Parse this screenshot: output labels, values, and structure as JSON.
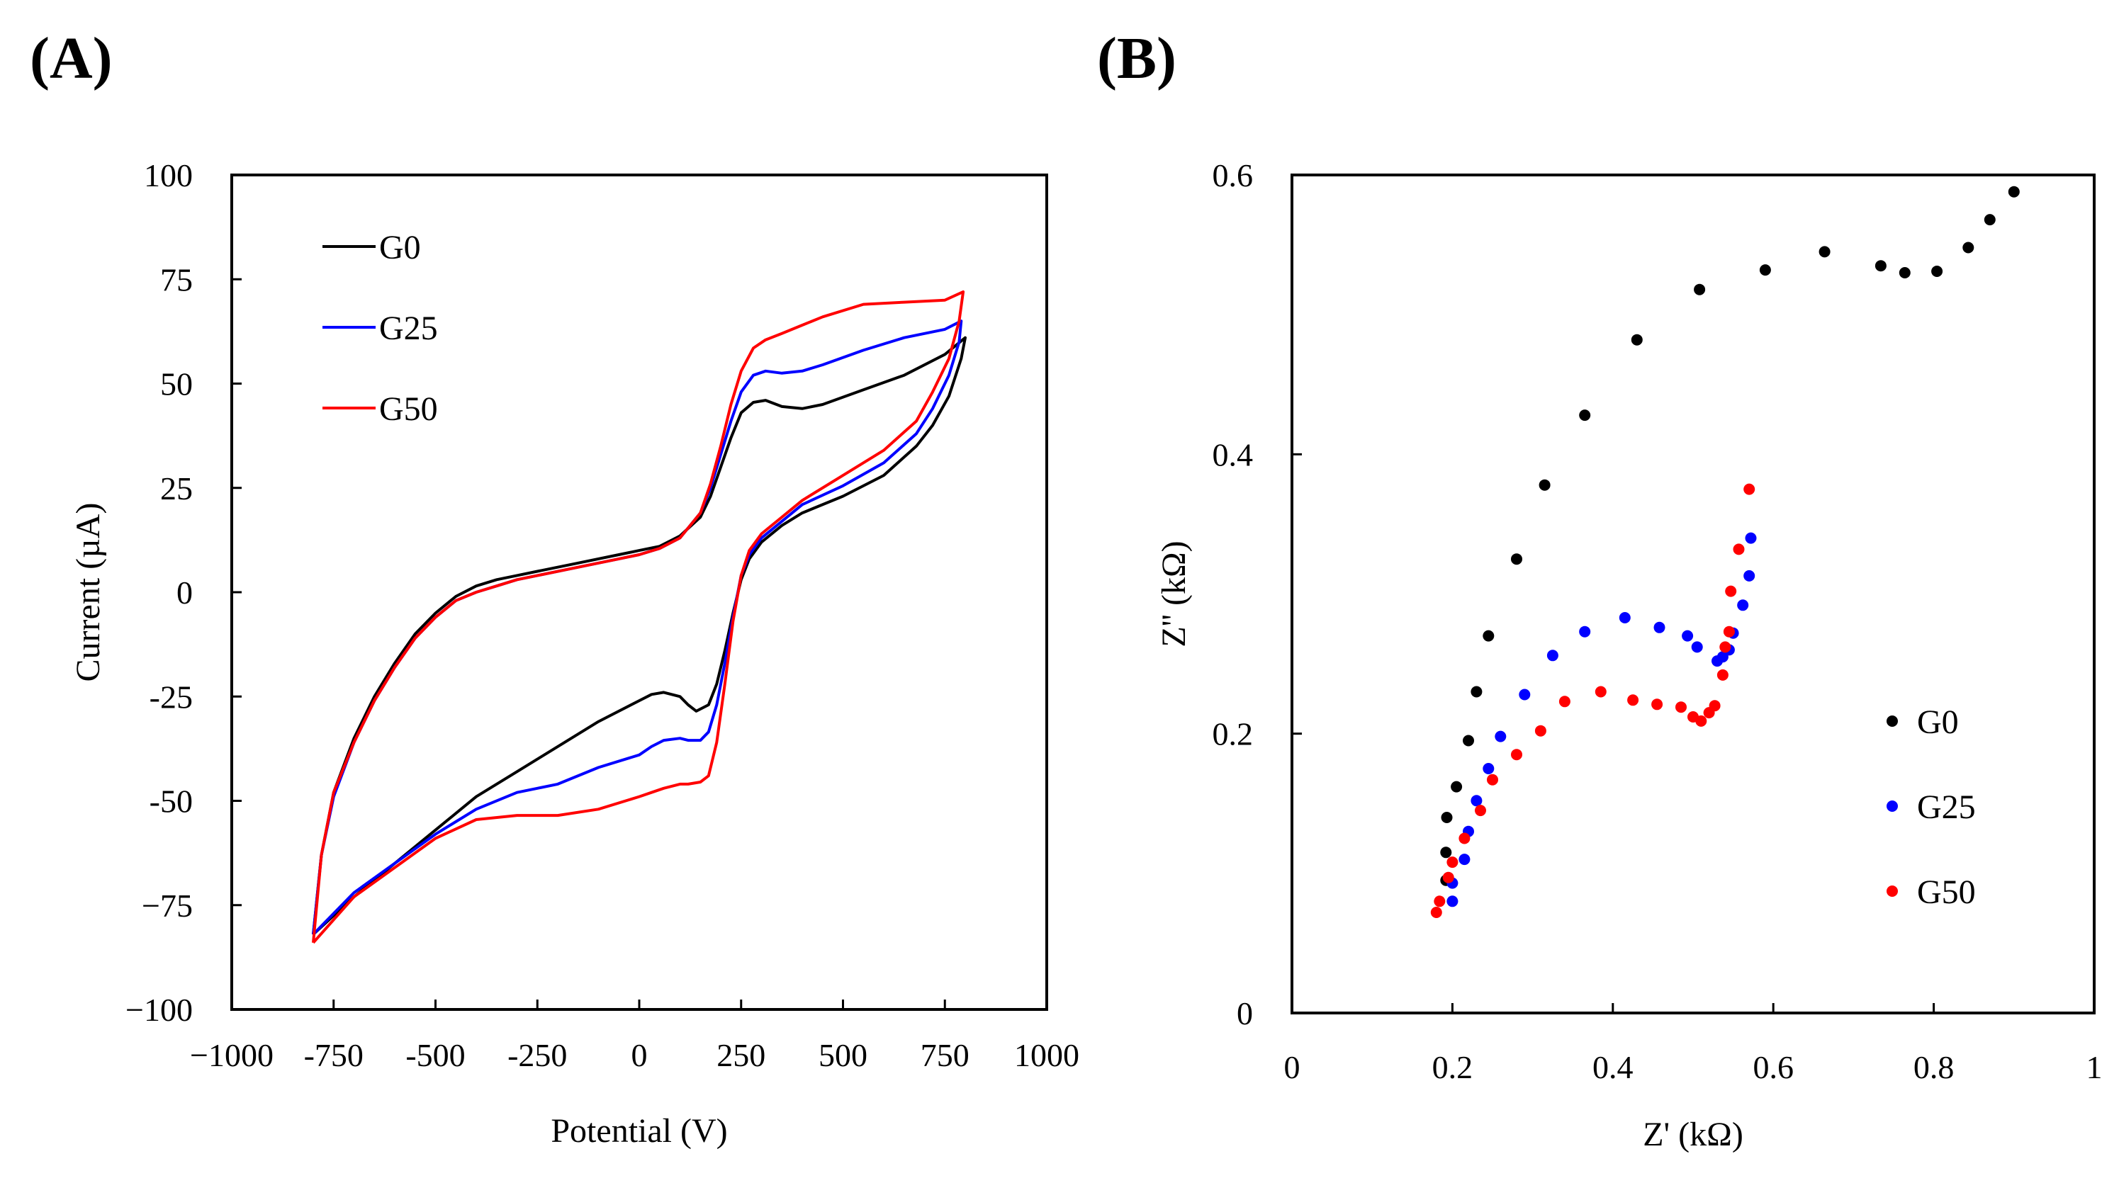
{
  "figure": {
    "panel_a_label": "(A)",
    "panel_b_label": "(B)"
  },
  "chart_data": [
    {
      "type": "line",
      "panel": "(A)",
      "title": "",
      "xlabel": "Potential (V)",
      "ylabel": "Current (µA)",
      "xlim": [
        -1000,
        1000
      ],
      "ylim": [
        -100,
        100
      ],
      "xticks": [
        -1000,
        -750,
        -500,
        -250,
        0,
        250,
        500,
        750,
        1000
      ],
      "yticks": [
        -100,
        -75,
        -50,
        -25,
        0,
        25,
        50,
        75,
        100
      ],
      "xtick_labels": [
        "−1000",
        "-750",
        "-500",
        "-250",
        "0",
        "250",
        "500",
        "750",
        "1000"
      ],
      "ytick_labels": [
        "−100",
        "−75",
        "-50",
        "-25",
        "0",
        "25",
        "50",
        "75",
        "100"
      ],
      "legend_position": "top-left",
      "series": [
        {
          "name": "G0",
          "color": "#000000",
          "points": [
            [
              -800,
              -82
            ],
            [
              -780,
              -63
            ],
            [
              -750,
              -48
            ],
            [
              -700,
              -35
            ],
            [
              -650,
              -25
            ],
            [
              -600,
              -17
            ],
            [
              -550,
              -10
            ],
            [
              -500,
              -5
            ],
            [
              -450,
              -1
            ],
            [
              -400,
              1.5
            ],
            [
              -350,
              3
            ],
            [
              -300,
              4
            ],
            [
              -250,
              5
            ],
            [
              -150,
              7
            ],
            [
              -50,
              9
            ],
            [
              0,
              10
            ],
            [
              50,
              11
            ],
            [
              100,
              13.5
            ],
            [
              150,
              18
            ],
            [
              175,
              23
            ],
            [
              200,
              30
            ],
            [
              225,
              37
            ],
            [
              250,
              43
            ],
            [
              280,
              45.5
            ],
            [
              310,
              46
            ],
            [
              350,
              44.5
            ],
            [
              400,
              44
            ],
            [
              450,
              45
            ],
            [
              550,
              48.5
            ],
            [
              650,
              52
            ],
            [
              750,
              57
            ],
            [
              800,
              61
            ],
            [
              790,
              56
            ],
            [
              760,
              47
            ],
            [
              720,
              40
            ],
            [
              680,
              35
            ],
            [
              600,
              28
            ],
            [
              500,
              23
            ],
            [
              400,
              19
            ],
            [
              350,
              16
            ],
            [
              300,
              12
            ],
            [
              270,
              8
            ],
            [
              250,
              3
            ],
            [
              230,
              -5
            ],
            [
              210,
              -14
            ],
            [
              190,
              -22
            ],
            [
              170,
              -27
            ],
            [
              140,
              -28.5
            ],
            [
              120,
              -27
            ],
            [
              100,
              -25
            ],
            [
              60,
              -24
            ],
            [
              30,
              -24.5
            ],
            [
              0,
              -26
            ],
            [
              -100,
              -31
            ],
            [
              -200,
              -37
            ],
            [
              -300,
              -43
            ],
            [
              -400,
              -49
            ],
            [
              -500,
              -57
            ],
            [
              -600,
              -65
            ],
            [
              -700,
              -73
            ],
            [
              -800,
              -82
            ]
          ]
        },
        {
          "name": "G25",
          "color": "#0000ff",
          "points": [
            [
              -800,
              -82
            ],
            [
              -780,
              -63
            ],
            [
              -750,
              -49
            ],
            [
              -700,
              -36
            ],
            [
              -650,
              -26
            ],
            [
              -600,
              -18
            ],
            [
              -550,
              -11
            ],
            [
              -500,
              -6
            ],
            [
              -450,
              -2
            ],
            [
              -400,
              0
            ],
            [
              -350,
              1.5
            ],
            [
              -300,
              3
            ],
            [
              -250,
              4
            ],
            [
              -150,
              6
            ],
            [
              -50,
              8
            ],
            [
              0,
              9
            ],
            [
              50,
              10.5
            ],
            [
              100,
              13
            ],
            [
              150,
              19
            ],
            [
              175,
              25
            ],
            [
              200,
              33
            ],
            [
              225,
              41
            ],
            [
              250,
              48
            ],
            [
              280,
              52
            ],
            [
              310,
              53
            ],
            [
              350,
              52.5
            ],
            [
              400,
              53
            ],
            [
              450,
              54.5
            ],
            [
              550,
              58
            ],
            [
              650,
              61
            ],
            [
              750,
              63
            ],
            [
              790,
              65
            ],
            [
              785,
              60
            ],
            [
              760,
              52
            ],
            [
              720,
              44
            ],
            [
              680,
              38
            ],
            [
              600,
              31
            ],
            [
              500,
              25.5
            ],
            [
              400,
              21
            ],
            [
              350,
              17
            ],
            [
              300,
              13
            ],
            [
              270,
              9
            ],
            [
              250,
              4
            ],
            [
              230,
              -6
            ],
            [
              210,
              -17
            ],
            [
              190,
              -27
            ],
            [
              170,
              -33.5
            ],
            [
              150,
              -35.5
            ],
            [
              120,
              -35.5
            ],
            [
              100,
              -35
            ],
            [
              60,
              -35.5
            ],
            [
              30,
              -37
            ],
            [
              0,
              -39
            ],
            [
              -100,
              -42
            ],
            [
              -200,
              -46
            ],
            [
              -250,
              -47
            ],
            [
              -300,
              -48
            ],
            [
              -400,
              -52
            ],
            [
              -500,
              -58
            ],
            [
              -600,
              -65
            ],
            [
              -700,
              -72
            ],
            [
              -800,
              -82
            ]
          ]
        },
        {
          "name": "G50",
          "color": "#ff0000",
          "points": [
            [
              -800,
              -84
            ],
            [
              -780,
              -63
            ],
            [
              -750,
              -48
            ],
            [
              -700,
              -36
            ],
            [
              -650,
              -26
            ],
            [
              -600,
              -18
            ],
            [
              -550,
              -11
            ],
            [
              -500,
              -6
            ],
            [
              -450,
              -2
            ],
            [
              -400,
              0
            ],
            [
              -350,
              1.5
            ],
            [
              -300,
              3
            ],
            [
              -250,
              4
            ],
            [
              -150,
              6
            ],
            [
              -50,
              8
            ],
            [
              0,
              9
            ],
            [
              50,
              10.5
            ],
            [
              100,
              13
            ],
            [
              150,
              19
            ],
            [
              175,
              26
            ],
            [
              200,
              35
            ],
            [
              225,
              45
            ],
            [
              250,
              53
            ],
            [
              280,
              58.5
            ],
            [
              310,
              60.5
            ],
            [
              350,
              62
            ],
            [
              400,
              64
            ],
            [
              450,
              66
            ],
            [
              550,
              69
            ],
            [
              650,
              69.5
            ],
            [
              750,
              70
            ],
            [
              795,
              72
            ],
            [
              785,
              65
            ],
            [
              760,
              56
            ],
            [
              720,
              48
            ],
            [
              680,
              41
            ],
            [
              600,
              34
            ],
            [
              500,
              28
            ],
            [
              400,
              22
            ],
            [
              350,
              18
            ],
            [
              300,
              14
            ],
            [
              270,
              10
            ],
            [
              250,
              4
            ],
            [
              230,
              -7
            ],
            [
              210,
              -22
            ],
            [
              190,
              -36
            ],
            [
              170,
              -44
            ],
            [
              150,
              -45.5
            ],
            [
              120,
              -46
            ],
            [
              100,
              -46
            ],
            [
              60,
              -47
            ],
            [
              30,
              -48
            ],
            [
              0,
              -49
            ],
            [
              -100,
              -52
            ],
            [
              -200,
              -53.5
            ],
            [
              -300,
              -53.5
            ],
            [
              -400,
              -54.5
            ],
            [
              -500,
              -59
            ],
            [
              -600,
              -66
            ],
            [
              -700,
              -73
            ],
            [
              -800,
              -84
            ]
          ]
        }
      ]
    },
    {
      "type": "scatter",
      "panel": "(B)",
      "title": "",
      "xlabel": "Z' (kΩ)",
      "ylabel": "Z'' (kΩ)",
      "xlim": [
        0,
        1
      ],
      "ylim": [
        0,
        0.6
      ],
      "xticks": [
        0,
        0.2,
        0.4,
        0.6,
        0.8,
        1
      ],
      "yticks": [
        0,
        0.2,
        0.4,
        0.6
      ],
      "xtick_labels": [
        "0",
        "0.2",
        "0.4",
        "0.6",
        "0.8",
        "1"
      ],
      "ytick_labels": [
        "0",
        "0.2",
        "0.4",
        "0.6"
      ],
      "legend_position": "lower-right",
      "series": [
        {
          "name": "G0",
          "color": "#000000",
          "points": [
            [
              0.192,
              0.095
            ],
            [
              0.192,
              0.115
            ],
            [
              0.193,
              0.14
            ],
            [
              0.205,
              0.162
            ],
            [
              0.22,
              0.195
            ],
            [
              0.23,
              0.23
            ],
            [
              0.245,
              0.27
            ],
            [
              0.28,
              0.325
            ],
            [
              0.315,
              0.378
            ],
            [
              0.365,
              0.428
            ],
            [
              0.43,
              0.482
            ],
            [
              0.508,
              0.518
            ],
            [
              0.59,
              0.532
            ],
            [
              0.664,
              0.545
            ],
            [
              0.734,
              0.535
            ],
            [
              0.764,
              0.53
            ],
            [
              0.804,
              0.531
            ],
            [
              0.843,
              0.548
            ],
            [
              0.87,
              0.568
            ],
            [
              0.9,
              0.588
            ]
          ]
        },
        {
          "name": "G25",
          "color": "#0000ff",
          "points": [
            [
              0.2,
              0.08
            ],
            [
              0.2,
              0.093
            ],
            [
              0.215,
              0.11
            ],
            [
              0.22,
              0.13
            ],
            [
              0.23,
              0.152
            ],
            [
              0.245,
              0.175
            ],
            [
              0.26,
              0.198
            ],
            [
              0.29,
              0.228
            ],
            [
              0.325,
              0.256
            ],
            [
              0.365,
              0.273
            ],
            [
              0.415,
              0.283
            ],
            [
              0.458,
              0.276
            ],
            [
              0.493,
              0.27
            ],
            [
              0.505,
              0.262
            ],
            [
              0.53,
              0.252
            ],
            [
              0.537,
              0.255
            ],
            [
              0.545,
              0.26
            ],
            [
              0.55,
              0.272
            ],
            [
              0.562,
              0.292
            ],
            [
              0.57,
              0.313
            ],
            [
              0.572,
              0.34
            ]
          ]
        },
        {
          "name": "G50",
          "color": "#ff0000",
          "points": [
            [
              0.18,
              0.072
            ],
            [
              0.184,
              0.08
            ],
            [
              0.195,
              0.097
            ],
            [
              0.2,
              0.108
            ],
            [
              0.215,
              0.125
            ],
            [
              0.235,
              0.145
            ],
            [
              0.25,
              0.167
            ],
            [
              0.28,
              0.185
            ],
            [
              0.31,
              0.202
            ],
            [
              0.34,
              0.223
            ],
            [
              0.385,
              0.23
            ],
            [
              0.425,
              0.224
            ],
            [
              0.455,
              0.221
            ],
            [
              0.485,
              0.219
            ],
            [
              0.5,
              0.212
            ],
            [
              0.51,
              0.209
            ],
            [
              0.52,
              0.215
            ],
            [
              0.527,
              0.22
            ],
            [
              0.537,
              0.242
            ],
            [
              0.54,
              0.262
            ],
            [
              0.545,
              0.273
            ],
            [
              0.547,
              0.302
            ],
            [
              0.557,
              0.332
            ],
            [
              0.57,
              0.375
            ]
          ]
        }
      ]
    }
  ]
}
